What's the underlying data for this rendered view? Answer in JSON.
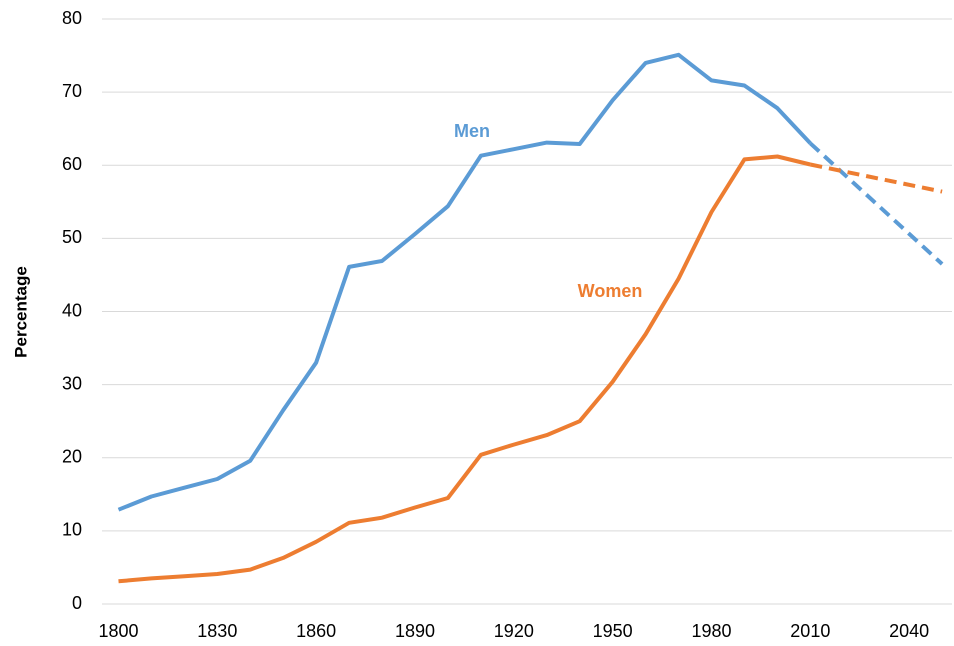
{
  "chart_data": {
    "type": "line",
    "y_label": "Percentage",
    "x": [
      1800,
      1810,
      1820,
      1830,
      1840,
      1850,
      1860,
      1870,
      1880,
      1890,
      1900,
      1910,
      1920,
      1930,
      1940,
      1950,
      1960,
      1970,
      1980,
      1990,
      2000,
      2010,
      2050
    ],
    "series": [
      {
        "name": "Men",
        "color": "#5b9bd5",
        "values": [
          12.9,
          14.7,
          15.9,
          17.1,
          19.6,
          26.5,
          33,
          46.1,
          46.9,
          50.6,
          54.4,
          61.3,
          62.2,
          63.1,
          62.9,
          68.9,
          74,
          75.1,
          71.6,
          70.9,
          67.8,
          63,
          46.5
        ]
      },
      {
        "name": "Women",
        "color": "#ed7d31",
        "values": [
          3.1,
          3.5,
          3.8,
          4.1,
          4.7,
          6.3,
          8.5,
          11.1,
          11.8,
          13.2,
          14.5,
          20.4,
          21.8,
          23.1,
          25,
          30.4,
          36.9,
          44.5,
          53.6,
          60.8,
          61.2,
          60.1,
          56.4
        ]
      }
    ],
    "projection_from": 2010,
    "xlim": [
      1795,
      2053
    ],
    "xticks": [
      1800,
      1830,
      1860,
      1890,
      1920,
      1950,
      1980,
      2010,
      2040
    ],
    "ylim": [
      0,
      80
    ],
    "yticks": [
      0,
      10,
      20,
      30,
      40,
      50,
      60,
      70,
      80
    ],
    "grid": true
  }
}
